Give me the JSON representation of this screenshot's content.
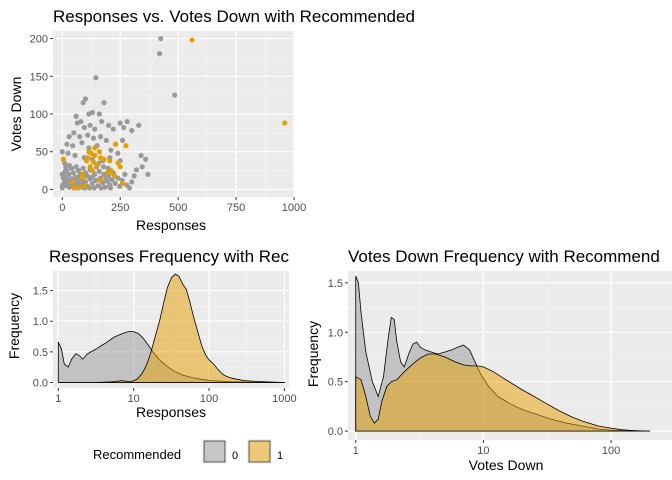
{
  "colors": {
    "panel_background": "#EBEBEB",
    "grid_major": "#FFFFFF",
    "grid_minor": "#F5F5F5",
    "recommended_0_point": "#999999",
    "recommended_1_point": "#E69F00",
    "recommended_0_fill": "#999999",
    "recommended_1_fill": "#E69F00",
    "outline": "#000000"
  },
  "chart_data": [
    {
      "id": "scatter",
      "type": "scatter",
      "title": "Responses vs. Votes Down with Recommended",
      "xlabel": "Responses",
      "ylabel": "Votes Down",
      "xlim": [
        -40,
        1000
      ],
      "ylim": [
        -10,
        210
      ],
      "x_ticks": [
        0,
        250,
        500,
        750,
        1000
      ],
      "x_tick_labels": [
        "0",
        "250",
        "500",
        "750",
        "1000"
      ],
      "y_ticks": [
        0,
        50,
        100,
        150,
        200
      ],
      "y_tick_labels": [
        "0",
        "50",
        "100",
        "150",
        "200"
      ],
      "grid": true,
      "series": [
        {
          "recommended": "0",
          "points": [
            [
              425,
              200
            ],
            [
              420,
              180
            ],
            [
              485,
              125
            ],
            [
              145,
              148
            ],
            [
              115,
              100
            ],
            [
              130,
              102
            ],
            [
              160,
              100
            ],
            [
              90,
              115
            ],
            [
              100,
              120
            ],
            [
              180,
              115
            ],
            [
              60,
              97
            ],
            [
              65,
              88
            ],
            [
              80,
              90
            ],
            [
              95,
              82
            ],
            [
              120,
              85
            ],
            [
              140,
              80
            ],
            [
              170,
              90
            ],
            [
              200,
              85
            ],
            [
              220,
              80
            ],
            [
              250,
              88
            ],
            [
              265,
              82
            ],
            [
              280,
              90
            ],
            [
              300,
              78
            ],
            [
              330,
              85
            ],
            [
              30,
              70
            ],
            [
              50,
              75
            ],
            [
              75,
              70
            ],
            [
              110,
              72
            ],
            [
              135,
              68
            ],
            [
              165,
              70
            ],
            [
              190,
              65
            ],
            [
              230,
              60
            ],
            [
              260,
              65
            ],
            [
              20,
              60
            ],
            [
              45,
              58
            ],
            [
              85,
              62
            ],
            [
              115,
              55
            ],
            [
              150,
              58
            ],
            [
              210,
              52
            ],
            [
              240,
              48
            ],
            [
              340,
              45
            ],
            [
              360,
              40
            ],
            [
              25,
              48
            ],
            [
              55,
              45
            ],
            [
              95,
              42
            ],
            [
              130,
              40
            ],
            [
              175,
              38
            ],
            [
              205,
              42
            ],
            [
              250,
              38
            ],
            [
              0,
              50
            ],
            [
              5,
              40
            ],
            [
              10,
              35
            ],
            [
              15,
              30
            ],
            [
              20,
              25
            ],
            [
              30,
              32
            ],
            [
              40,
              28
            ],
            [
              60,
              30
            ],
            [
              70,
              25
            ],
            [
              90,
              28
            ],
            [
              100,
              22
            ],
            [
              120,
              26
            ],
            [
              140,
              20
            ],
            [
              160,
              24
            ],
            [
              180,
              20
            ],
            [
              200,
              18
            ],
            [
              220,
              22
            ],
            [
              240,
              15
            ],
            [
              270,
              20
            ],
            [
              300,
              10
            ],
            [
              310,
              18
            ],
            [
              0,
              20
            ],
            [
              5,
              15
            ],
            [
              10,
              10
            ],
            [
              15,
              8
            ],
            [
              20,
              5
            ],
            [
              25,
              12
            ],
            [
              30,
              3
            ],
            [
              35,
              9
            ],
            [
              40,
              14
            ],
            [
              45,
              6
            ],
            [
              50,
              2
            ],
            [
              55,
              11
            ],
            [
              60,
              7
            ],
            [
              65,
              16
            ],
            [
              70,
              4
            ],
            [
              75,
              12
            ],
            [
              80,
              8
            ],
            [
              85,
              3
            ],
            [
              90,
              13
            ],
            [
              95,
              6
            ],
            [
              100,
              10
            ],
            [
              110,
              4
            ],
            [
              120,
              14
            ],
            [
              130,
              8
            ],
            [
              145,
              12
            ],
            [
              155,
              5
            ],
            [
              165,
              15
            ],
            [
              175,
              9
            ],
            [
              185,
              3
            ],
            [
              195,
              11
            ],
            [
              205,
              6
            ],
            [
              215,
              13
            ],
            [
              0,
              2
            ],
            [
              2,
              6
            ],
            [
              8,
              18
            ],
            [
              12,
              24
            ],
            [
              18,
              14
            ],
            [
              28,
              20
            ],
            [
              38,
              4
            ],
            [
              48,
              22
            ],
            [
              58,
              16
            ],
            [
              68,
              2
            ],
            [
              78,
              20
            ],
            [
              88,
              18
            ],
            [
              98,
              2
            ],
            [
              108,
              18
            ],
            [
              118,
              2
            ],
            [
              128,
              16
            ],
            [
              138,
              2
            ],
            [
              148,
              30
            ],
            [
              158,
              35
            ],
            [
              168,
              2
            ],
            [
              178,
              30
            ],
            [
              188,
              14
            ],
            [
              198,
              28
            ],
            [
              208,
              2
            ],
            [
              228,
              8
            ],
            [
              248,
              4
            ],
            [
              258,
              12
            ],
            [
              278,
              6
            ],
            [
              290,
              2
            ],
            [
              320,
              26
            ],
            [
              345,
              30
            ],
            [
              370,
              20
            ]
          ]
        },
        {
          "recommended": "1",
          "points": [
            [
              560,
              198
            ],
            [
              960,
              88
            ],
            [
              230,
              60
            ],
            [
              275,
              58
            ],
            [
              140,
              55
            ],
            [
              160,
              50
            ],
            [
              125,
              48
            ],
            [
              140,
              45
            ],
            [
              165,
              42
            ],
            [
              180,
              40
            ],
            [
              205,
              38
            ],
            [
              240,
              35
            ],
            [
              105,
              38
            ],
            [
              120,
              30
            ],
            [
              150,
              32
            ],
            [
              130,
              25
            ],
            [
              85,
              20
            ],
            [
              90,
              15
            ],
            [
              210,
              25
            ],
            [
              250,
              30
            ],
            [
              260,
              8
            ],
            [
              165,
              12
            ],
            [
              110,
              42
            ],
            [
              100,
              5
            ],
            [
              75,
              3
            ],
            [
              45,
              10
            ],
            [
              5,
              40
            ],
            [
              50,
              2
            ],
            [
              195,
              22
            ],
            [
              225,
              18
            ],
            [
              115,
              50
            ],
            [
              135,
              36
            ]
          ]
        }
      ]
    },
    {
      "id": "responses_density",
      "type": "area",
      "title": "Responses Frequency with Rec",
      "xlabel": "Responses",
      "ylabel": "Frequency",
      "x_scale": "log10",
      "xlim": [
        0.85,
        1150
      ],
      "ylim": [
        -0.09,
        1.82
      ],
      "x_ticks": [
        1,
        10,
        100,
        1000
      ],
      "x_tick_labels": [
        "1",
        "10",
        "100",
        "1000"
      ],
      "y_ticks": [
        0,
        0.5,
        1.0,
        1.5
      ],
      "y_tick_labels": [
        "0.0",
        "0.5",
        "1.0",
        "1.5"
      ],
      "grid": true,
      "series": [
        {
          "recommended": "0",
          "x": [
            1,
            1.1,
            1.2,
            1.35,
            1.5,
            1.7,
            1.9,
            2.1,
            2.4,
            2.7,
            3,
            3.3,
            3.7,
            4.2,
            4.8,
            5.5,
            6.5,
            7.5,
            8.5,
            10,
            11.5,
            13,
            15,
            18,
            22,
            28,
            35,
            45,
            60,
            80,
            110,
            150,
            200,
            300,
            500,
            1000
          ],
          "y": [
            0.66,
            0.55,
            0.3,
            0.25,
            0.38,
            0.47,
            0.44,
            0.38,
            0.46,
            0.5,
            0.53,
            0.56,
            0.6,
            0.64,
            0.69,
            0.74,
            0.78,
            0.81,
            0.83,
            0.83,
            0.8,
            0.74,
            0.64,
            0.5,
            0.37,
            0.26,
            0.18,
            0.12,
            0.08,
            0.05,
            0.03,
            0.02,
            0.01,
            0.01,
            0.0,
            0.0
          ]
        },
        {
          "recommended": "1",
          "x": [
            1,
            2,
            3,
            4,
            5,
            6,
            7,
            8,
            9,
            10,
            11,
            12,
            13,
            15,
            17,
            19,
            22,
            25,
            28,
            32,
            36,
            40,
            45,
            50,
            56,
            63,
            70,
            80,
            90,
            100,
            115,
            130,
            150,
            170,
            200,
            240,
            300,
            400,
            600,
            1000
          ],
          "y": [
            0.0,
            0.0,
            0.0,
            0.005,
            0.01,
            0.02,
            0.03,
            0.02,
            0.01,
            0.03,
            0.05,
            0.1,
            0.15,
            0.3,
            0.5,
            0.72,
            1.0,
            1.3,
            1.55,
            1.72,
            1.77,
            1.73,
            1.6,
            1.52,
            1.3,
            1.05,
            0.85,
            0.6,
            0.45,
            0.37,
            0.3,
            0.22,
            0.14,
            0.1,
            0.07,
            0.05,
            0.03,
            0.02,
            0.01,
            0.0
          ]
        }
      ]
    },
    {
      "id": "votes_down_density",
      "type": "area",
      "title": "Votes Down Frequency with Recommend",
      "xlabel": "Votes Down",
      "ylabel": "Frequency",
      "x_scale": "log10",
      "xlim": [
        0.87,
        300
      ],
      "ylim": [
        -0.09,
        1.62
      ],
      "x_ticks": [
        1,
        10,
        100
      ],
      "x_tick_labels": [
        "1",
        "10",
        "100"
      ],
      "y_ticks": [
        0,
        0.5,
        1.0,
        1.5
      ],
      "y_tick_labels": [
        "0.0",
        "0.5",
        "1.0",
        "1.5"
      ],
      "grid": true,
      "series": [
        {
          "recommended": "0",
          "x": [
            1,
            1.05,
            1.1,
            1.2,
            1.35,
            1.5,
            1.65,
            1.8,
            1.9,
            2,
            2.1,
            2.25,
            2.4,
            2.6,
            2.8,
            3,
            3.2,
            3.5,
            3.9,
            4.4,
            5,
            5.6,
            6.3,
            7,
            7.8,
            8.6,
            9.5,
            11,
            13,
            16,
            20,
            26,
            34,
            45,
            60,
            80,
            100,
            200
          ],
          "y": [
            1.57,
            1.5,
            1.2,
            0.8,
            0.5,
            0.35,
            0.55,
            0.95,
            1.15,
            1.13,
            0.9,
            0.7,
            0.65,
            0.78,
            0.88,
            0.9,
            0.85,
            0.82,
            0.8,
            0.78,
            0.8,
            0.82,
            0.85,
            0.87,
            0.82,
            0.7,
            0.58,
            0.45,
            0.35,
            0.28,
            0.22,
            0.17,
            0.12,
            0.08,
            0.05,
            0.02,
            0.01,
            0.0
          ]
        },
        {
          "recommended": "1",
          "x": [
            1,
            1.1,
            1.2,
            1.3,
            1.4,
            1.5,
            1.6,
            1.75,
            1.9,
            2.1,
            2.4,
            2.8,
            3.2,
            3.7,
            4.2,
            5,
            6,
            7,
            8,
            9,
            10,
            12,
            15,
            20,
            25,
            30,
            40,
            50,
            60,
            80,
            100,
            120,
            150,
            200
          ],
          "y": [
            0.55,
            0.52,
            0.35,
            0.15,
            0.08,
            0.12,
            0.3,
            0.45,
            0.5,
            0.52,
            0.6,
            0.68,
            0.74,
            0.78,
            0.78,
            0.75,
            0.7,
            0.67,
            0.66,
            0.66,
            0.65,
            0.6,
            0.52,
            0.42,
            0.35,
            0.29,
            0.2,
            0.14,
            0.1,
            0.05,
            0.03,
            0.015,
            0.005,
            0.0
          ]
        }
      ]
    }
  ],
  "legend": {
    "title": "Recommended",
    "items": [
      {
        "label": "0",
        "color": "#999999"
      },
      {
        "label": "1",
        "color": "#E69F00"
      }
    ]
  }
}
